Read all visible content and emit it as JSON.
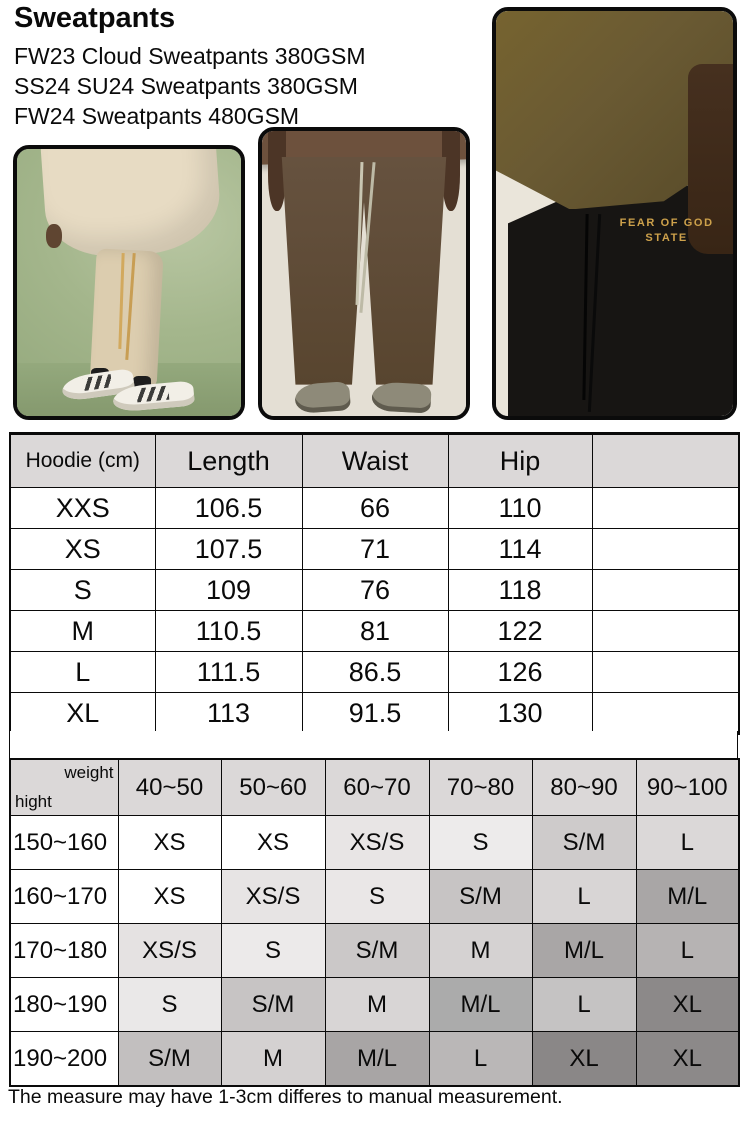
{
  "header": {
    "title": "Sweatpants",
    "lines": [
      "FW23 Cloud Sweatpants 380GSM",
      "SS24 SU24 Sweatpants 380GSM",
      "FW24 Sweatpants 480GSM"
    ]
  },
  "photos": {
    "cream": {
      "label": "model wearing cream hoodie and sweatpants"
    },
    "brown": {
      "label": "model wearing brown sweatpants"
    },
    "black": {
      "label": "model wearing black sweatpants",
      "print_line1": "FEAR OF GOD",
      "print_line2": "STATE"
    }
  },
  "size_table": {
    "headers": [
      "Hoodie (cm)",
      "Length",
      "Waist",
      "Hip",
      ""
    ],
    "rows": [
      [
        "XXS",
        "106.5",
        "66",
        "110",
        ""
      ],
      [
        "XS",
        "107.5",
        "71",
        "114",
        ""
      ],
      [
        "S",
        "109",
        "76",
        "118",
        ""
      ],
      [
        "M",
        "110.5",
        "81",
        "122",
        ""
      ],
      [
        "L",
        "111.5",
        "86.5",
        "126",
        ""
      ],
      [
        "XL",
        "113",
        "91.5",
        "130",
        ""
      ]
    ]
  },
  "fit_table": {
    "corner_top": "weight",
    "corner_bottom": "hight",
    "weight_headers": [
      "40~50",
      "50~60",
      "60~70",
      "70~80",
      "80~90",
      "90~100"
    ],
    "rows": [
      {
        "height": "150~160",
        "cells": [
          {
            "t": "XS",
            "bg": "#ffffff"
          },
          {
            "t": "XS",
            "bg": "#ffffff"
          },
          {
            "t": "XS/S",
            "bg": "#e8e5e5"
          },
          {
            "t": "S",
            "bg": "#edebeb"
          },
          {
            "t": "S/M",
            "bg": "#cecbcb"
          },
          {
            "t": "L",
            "bg": "#dbd8d8"
          }
        ]
      },
      {
        "height": "160~170",
        "cells": [
          {
            "t": "XS",
            "bg": "#ffffff"
          },
          {
            "t": "XS/S",
            "bg": "#e7e4e4"
          },
          {
            "t": "S",
            "bg": "#eae7e7"
          },
          {
            "t": "S/M",
            "bg": "#c7c4c4"
          },
          {
            "t": "L",
            "bg": "#d8d5d5"
          },
          {
            "t": "M/L",
            "bg": "#a9a6a6"
          }
        ]
      },
      {
        "height": "170~180",
        "cells": [
          {
            "t": "XS/S",
            "bg": "#e5e2e2"
          },
          {
            "t": "S",
            "bg": "#eceaea"
          },
          {
            "t": "S/M",
            "bg": "#cbc8c8"
          },
          {
            "t": "M",
            "bg": "#d5d2d2"
          },
          {
            "t": "M/L",
            "bg": "#a9a6a6"
          },
          {
            "t": "L",
            "bg": "#b6b3b3"
          }
        ]
      },
      {
        "height": "180~190",
        "cells": [
          {
            "t": "S",
            "bg": "#eae8e8"
          },
          {
            "t": "S/M",
            "bg": "#c7c4c4"
          },
          {
            "t": "M",
            "bg": "#d8d5d5"
          },
          {
            "t": "M/L",
            "bg": "#ababab"
          },
          {
            "t": "L",
            "bg": "#c5c3c3"
          },
          {
            "t": "XL",
            "bg": "#8c8989"
          }
        ]
      },
      {
        "height": "190~200",
        "cells": [
          {
            "t": "S/M",
            "bg": "#c2bfbf"
          },
          {
            "t": "M",
            "bg": "#d4d1d1"
          },
          {
            "t": "M/L",
            "bg": "#a8a5a5"
          },
          {
            "t": "L",
            "bg": "#bab7b7"
          },
          {
            "t": "XL",
            "bg": "#8a8787"
          },
          {
            "t": "XL",
            "bg": "#8c8989"
          }
        ]
      }
    ]
  },
  "footer": {
    "note": "The measure may have 1-3cm differes to manual measurement."
  },
  "colors": {
    "table_header_bg": "#dbd8d8",
    "table_border": "#0a0a0a",
    "print_gold": "#cda14b"
  }
}
